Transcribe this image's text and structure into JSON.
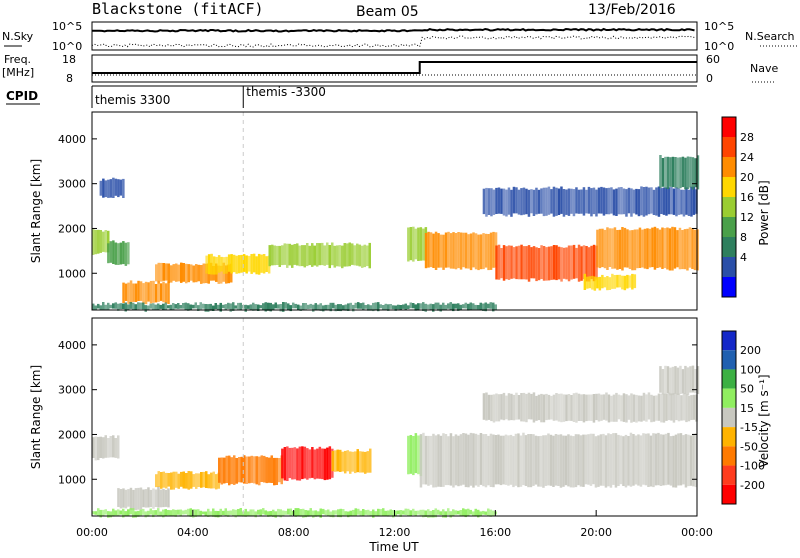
{
  "header": {
    "station": "Blackstone (fitACF)",
    "beam": "Beam 05",
    "date": "13/Feb/2016"
  },
  "top_panels": {
    "nsky_label": "N.Sky",
    "nsky_ticks": [
      "10^5",
      "10^0"
    ],
    "nsearch_label": "N.Search",
    "nsearch_ticks": [
      "10^5",
      "10^0"
    ],
    "freq_label": "Freq.",
    "freq_unit": "[MHz]",
    "freq_ticks": [
      "18",
      "8"
    ],
    "nave_label": "Nave",
    "nave_ticks": [
      "60",
      "0"
    ],
    "cpid_label": "CPID",
    "cpid_segments": [
      {
        "name": "themis 3300",
        "start_hour": 0
      },
      {
        "name": "themis -3300",
        "start_hour": 6
      }
    ]
  },
  "colors": {
    "power_scale": [
      "#0000ff",
      "#2a4fa8",
      "#2e7f5e",
      "#4aa04a",
      "#9acd32",
      "#ffd700",
      "#ff8c00",
      "#ff4500",
      "#ff0000"
    ],
    "velocity_scale": [
      "#ff0000",
      "#ff3c1e",
      "#ff7a00",
      "#ffb300",
      "#c8c8c0",
      "#90ee60",
      "#3cb043",
      "#2060b0",
      "#1428c8"
    ],
    "ground_scatter": "#c8c8c0"
  },
  "chart_data": [
    {
      "type": "heatmap",
      "panel": "power",
      "xlabel": "",
      "ylabel": "Slant Range [km]",
      "xlim_hours": [
        0,
        24
      ],
      "ylim": [
        180,
        4600
      ],
      "y_ticks": [
        1000,
        2000,
        3000,
        4000
      ],
      "colorbar_label": "Power [dB]",
      "colorbar_ticks": [
        "4",
        "8",
        "12",
        "16",
        "20",
        "24",
        "28"
      ],
      "colorbar_range": [
        0,
        30
      ],
      "bands": [
        {
          "start": 0.0,
          "end": 0.6,
          "range_low": 1450,
          "range_high": 1950,
          "value": 14
        },
        {
          "start": 0.6,
          "end": 1.4,
          "range_low": 1200,
          "range_high": 1700,
          "value": 10
        },
        {
          "start": 0.3,
          "end": 1.2,
          "range_low": 2700,
          "range_high": 3100,
          "value": 6
        },
        {
          "start": 1.2,
          "end": 3.0,
          "range_low": 350,
          "range_high": 800,
          "value": 20
        },
        {
          "start": 2.5,
          "end": 5.5,
          "range_low": 800,
          "range_high": 1200,
          "value": 22
        },
        {
          "start": 4.5,
          "end": 7.0,
          "range_low": 1000,
          "range_high": 1400,
          "value": 18
        },
        {
          "start": 7.0,
          "end": 11.0,
          "range_low": 1150,
          "range_high": 1650,
          "value": 16
        },
        {
          "start": 12.5,
          "end": 13.2,
          "range_low": 1300,
          "range_high": 2000,
          "value": 14
        },
        {
          "start": 13.2,
          "end": 16.0,
          "range_low": 1100,
          "range_high": 1900,
          "value": 22
        },
        {
          "start": 16.0,
          "end": 20.0,
          "range_low": 850,
          "range_high": 1600,
          "value": 24
        },
        {
          "start": 20.0,
          "end": 24.0,
          "range_low": 1100,
          "range_high": 2000,
          "value": 20
        },
        {
          "start": 19.5,
          "end": 21.5,
          "range_low": 650,
          "range_high": 950,
          "value": 18
        },
        {
          "start": 15.5,
          "end": 24.0,
          "range_low": 2300,
          "range_high": 2900,
          "value": 6
        },
        {
          "start": 22.5,
          "end": 24.0,
          "range_low": 2900,
          "range_high": 3600,
          "value": 8
        },
        {
          "start": 0.0,
          "end": 16.0,
          "range_low": 180,
          "range_high": 320,
          "value": 8
        }
      ]
    },
    {
      "type": "heatmap",
      "panel": "velocity",
      "xlabel": "Time UT",
      "ylabel": "Slant Range [km]",
      "x_ticks": [
        "00:00",
        "04:00",
        "08:00",
        "12:00",
        "16:00",
        "20:00",
        "00:00"
      ],
      "xlim_hours": [
        0,
        24
      ],
      "ylim": [
        180,
        4600
      ],
      "y_ticks": [
        1000,
        2000,
        3000,
        4000
      ],
      "colorbar_label": "Velocity [m s⁻¹]",
      "colorbar_ticks": [
        "200",
        "100",
        "50",
        "15",
        "-15",
        "-50",
        "-100",
        "-200"
      ],
      "colorbar_range": [
        -250,
        250
      ],
      "bands": [
        {
          "start": 0.0,
          "end": 1.0,
          "range_low": 1450,
          "range_high": 1950,
          "value": 0,
          "ground": true
        },
        {
          "start": 1.0,
          "end": 3.0,
          "range_low": 350,
          "range_high": 800,
          "value": 0,
          "ground": true
        },
        {
          "start": 2.5,
          "end": 5.0,
          "range_low": 800,
          "range_high": 1150,
          "value": -70
        },
        {
          "start": 5.0,
          "end": 7.5,
          "range_low": 900,
          "range_high": 1500,
          "value": -120
        },
        {
          "start": 7.5,
          "end": 9.5,
          "range_low": 1000,
          "range_high": 1700,
          "value": -200
        },
        {
          "start": 9.5,
          "end": 11.0,
          "range_low": 1150,
          "range_high": 1650,
          "value": -60
        },
        {
          "start": 12.5,
          "end": 13.0,
          "range_low": 1100,
          "range_high": 2000,
          "value": 30
        },
        {
          "start": 13.0,
          "end": 24.0,
          "range_low": 850,
          "range_high": 2000,
          "value": 0,
          "ground": true
        },
        {
          "start": 15.5,
          "end": 24.0,
          "range_low": 2300,
          "range_high": 2900,
          "value": 0,
          "ground": true
        },
        {
          "start": 22.5,
          "end": 24.0,
          "range_low": 2900,
          "range_high": 3500,
          "value": 0,
          "ground": true
        },
        {
          "start": 0.0,
          "end": 16.0,
          "range_low": 180,
          "range_high": 320,
          "value": 30
        }
      ]
    }
  ]
}
